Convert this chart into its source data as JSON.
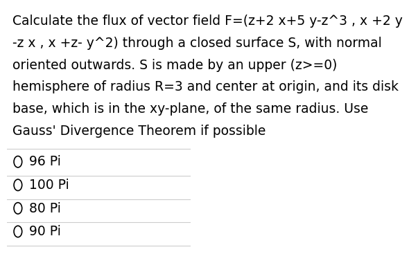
{
  "question_text": "Calculate the flux of vector field F=(z+2 x+5 y-z^3 , x +2 y\n-z x , x +z- y^2) through a closed surface S, with normal\noriented outwards. S is made by an upper (z>=0)\nhemisphere of radius R=3 and center at origin, and its disk\nbase, which is in the xy-plane, of the same radius. Use\nGauss' Divergence Theorem if possible",
  "options": [
    "96 Pi",
    "100 Pi",
    "80 Pi",
    "90 Pi"
  ],
  "background_color": "#ffffff",
  "text_color": "#000000",
  "font_size": 13.5,
  "option_font_size": 13.5,
  "circle_color": "#000000",
  "divider_color": "#cccccc"
}
